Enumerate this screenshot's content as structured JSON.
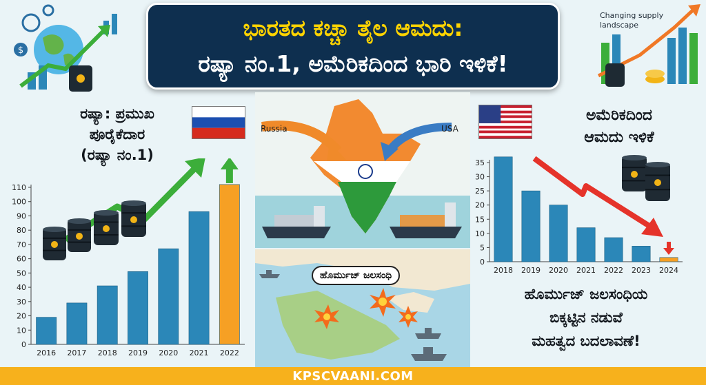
{
  "title": {
    "line1": "ಭಾರತದ ಕಚ್ಚಾ ತೈಲ ಆಮದು:",
    "line2": "ರಷ್ಯಾ ನಂ.1, ಅಮೆರಿಕದಿಂದ ಭಾರಿ ಇಳಿಕೆ!"
  },
  "decor": {
    "caption": "Changing supply landscape"
  },
  "left_panel": {
    "heading_lines": [
      "ರಷ್ಯಾ: ಪ್ರಮುಖ",
      "ಪೂರೈಕೆದಾರ",
      "(ರಷ್ಯಾ ನಂ.1)"
    ]
  },
  "right_panel": {
    "heading_lines": [
      "ಅಮೆರಿಕದಿಂದ",
      "ಆಮದು ಇಳಿಕೆ"
    ],
    "bottom_lines": [
      "ಹೊರ್ಮುಜ್ ಜಲಸಂಧಿಯ",
      "ಬಿಕ್ಕಟ್ಟಿನ ನಡುವೆ",
      "ಮಹತ್ವದ ಬದಲಾವಣೆ!"
    ]
  },
  "map": {
    "label_russia": "Russia",
    "label_usa": "USA",
    "hormuz_label": "ಹೊರ್ಮುಜ್ ಜಲಸಂಧಿ"
  },
  "footer": {
    "text": "KPSCVAANI.COM"
  },
  "colors": {
    "bar_blue": "#2b87b8",
    "bar_orange": "#f6a024",
    "arrow_green": "#3cae3a",
    "arrow_red": "#e5332a",
    "banner": "#0e2f4f",
    "footer": "#f7b11c"
  },
  "chart_data": [
    {
      "type": "bar",
      "categories": [
        "2016",
        "2017",
        "2018",
        "2019",
        "2020",
        "2021",
        "2022"
      ],
      "values": [
        19,
        29,
        41,
        51,
        67,
        93,
        112
      ],
      "highlight_last": true,
      "title": "",
      "xlabel": "",
      "ylabel": "",
      "ylim": [
        0,
        110
      ],
      "yticks": [
        0,
        10,
        20,
        30,
        40,
        50,
        60,
        70,
        80,
        90,
        100,
        110
      ],
      "grid": false,
      "trend_arrow": "up"
    },
    {
      "type": "bar",
      "categories": [
        "2018",
        "2019",
        "2020",
        "2021",
        "2022",
        "2023",
        "2024"
      ],
      "values": [
        37,
        25,
        20,
        12,
        8.5,
        5.5,
        1.5
      ],
      "highlight_last": true,
      "title": "",
      "xlabel": "",
      "ylabel": "",
      "ylim": [
        0,
        35
      ],
      "yticks": [
        0,
        5,
        10,
        15,
        20,
        25,
        30,
        35
      ],
      "grid": false,
      "trend_arrow": "down"
    }
  ]
}
